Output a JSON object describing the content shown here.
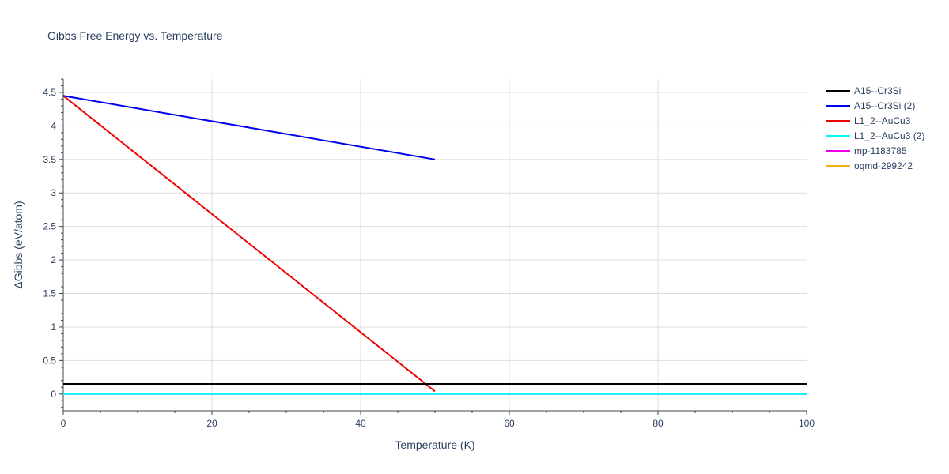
{
  "chart_data": {
    "type": "line",
    "title": "Gibbs Free Energy vs. Temperature",
    "xlabel": "Temperature (K)",
    "ylabel": "ΔGibbs (eV/atom)",
    "xlim": [
      0,
      100
    ],
    "ylim": [
      -0.25,
      4.7
    ],
    "x_ticks": [
      0,
      20,
      40,
      60,
      80,
      100
    ],
    "y_ticks": [
      0,
      0.5,
      1,
      1.5,
      2,
      2.5,
      3,
      3.5,
      4,
      4.5
    ],
    "x_tick_labels": [
      "0",
      "20",
      "40",
      "60",
      "80",
      "100"
    ],
    "y_tick_labels": [
      "0",
      "0.5",
      "1",
      "1.5",
      "2",
      "2.5",
      "3",
      "3.5",
      "4",
      "4.5"
    ],
    "grid": true,
    "legend_position": "top-right",
    "series": [
      {
        "name": "A15--Cr3Si",
        "color": "#000000",
        "x": [
          0,
          100
        ],
        "y": [
          0.15,
          0.15
        ]
      },
      {
        "name": "A15--Cr3Si (2)",
        "color": "#0000ee",
        "x": [
          0,
          50
        ],
        "y": [
          4.45,
          3.5
        ]
      },
      {
        "name": "L1_2--AuCu3",
        "color": "#ee0000",
        "x": [
          0,
          50
        ],
        "y": [
          4.45,
          0.04
        ]
      },
      {
        "name": "L1_2--AuCu3 (2)",
        "color": "#00ffff",
        "x": [
          0,
          100
        ],
        "y": [
          0,
          0
        ]
      },
      {
        "name": "mp-1183785",
        "color": "#ee00ee",
        "x": [
          0,
          100
        ],
        "y": [
          0,
          0
        ]
      },
      {
        "name": "oqmd-299242",
        "color": "#f2b21c",
        "x": [
          0,
          100
        ],
        "y": [
          0,
          0
        ]
      }
    ]
  }
}
